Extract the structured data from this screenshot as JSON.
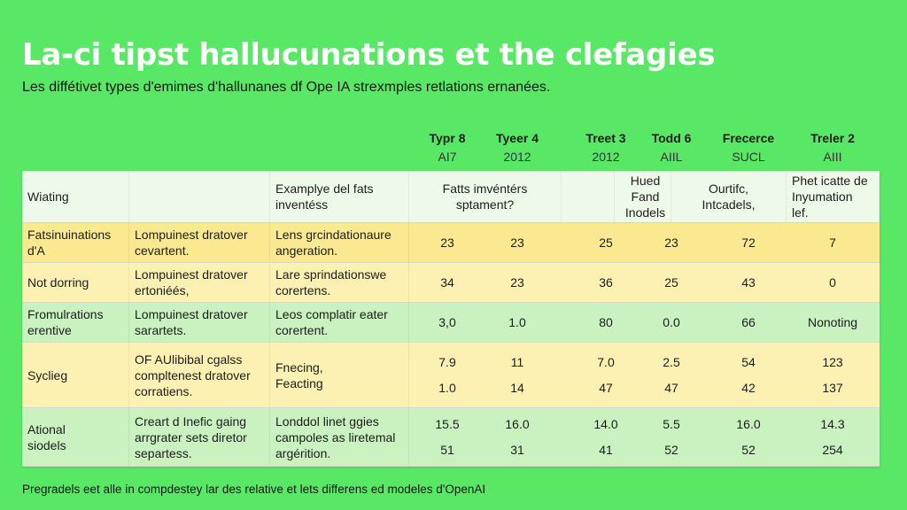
{
  "title": "La-ci tipst hallucunations et the clefagies",
  "subtitle": "Les diffétivet types d'emimes d'hallunanes df Ope IA strexmples retlations ernanées.",
  "footnote": "Pregradels eet alle in compdestey lar des relative et lets differens ed modeles d'OpenAI",
  "chart_data": {
    "type": "table",
    "column_headers": [
      {
        "name": "Typr 8",
        "sub": "AI7"
      },
      {
        "name": "Tyeer 4",
        "sub": "2012"
      },
      {
        "name": "Treet 3",
        "sub": "2012"
      },
      {
        "name": "Todd 6",
        "sub": "AIIL"
      },
      {
        "name": "Frecerce",
        "sub": "SUCL"
      },
      {
        "name": "Treler 2",
        "sub": "AIII"
      }
    ],
    "header_row": {
      "label": "Wiating",
      "desc": "",
      "example": [
        "Examplye del fats",
        "inventéss"
      ],
      "cells": [
        [
          "Fatts imvéntérs",
          "sptament?"
        ],
        [],
        [
          "Hued",
          "Fand",
          "Inodels"
        ],
        [
          "Ourtifc,",
          "Intcadels,"
        ],
        [
          "Phet icatte de",
          "Inyumation",
          "lef."
        ]
      ]
    },
    "rows": [
      {
        "label": [
          "Fatsinuinations",
          "d'A"
        ],
        "desc": [
          "Lompuinest dratover",
          "cevartent."
        ],
        "example": [
          "Lens grcindationaure",
          "angeration."
        ],
        "values": [
          [
            "23"
          ],
          [
            "23"
          ],
          [
            "25"
          ],
          [
            "23"
          ],
          [
            "72"
          ],
          [
            "7"
          ]
        ]
      },
      {
        "label": [
          "Not dorring"
        ],
        "desc": [
          "Lompuinest dratover",
          "ertoniéés,"
        ],
        "example": [
          "Lare sprindationswe",
          "corertens."
        ],
        "values": [
          [
            "34"
          ],
          [
            "23"
          ],
          [
            "36"
          ],
          [
            "25"
          ],
          [
            "43"
          ],
          [
            "0"
          ]
        ]
      },
      {
        "label": [
          "Fromulrations",
          "erentive"
        ],
        "desc": [
          "Lompuinest dratover",
          "sarartets."
        ],
        "example": [
          "Leos complatir eater",
          "corertent."
        ],
        "values": [
          [
            "3,0"
          ],
          [
            "1.0"
          ],
          [
            "80"
          ],
          [
            "0.0"
          ],
          [
            "66"
          ],
          [
            "Nonoting"
          ]
        ]
      },
      {
        "label": [
          "Syclieg"
        ],
        "desc": [
          "OF AUlibibal cgalss",
          "compltenest dratover",
          "corratiens."
        ],
        "example": [
          "Fnecing,",
          "Feacting"
        ],
        "values": [
          [
            "7.9",
            "1.0"
          ],
          [
            "11",
            "14"
          ],
          [
            "7.0",
            "47"
          ],
          [
            "2.5",
            "47"
          ],
          [
            "54",
            "42"
          ],
          [
            "123",
            "137"
          ]
        ]
      },
      {
        "label": [
          "Ational",
          "siodels"
        ],
        "desc": [
          "Creart d Inefic gaing",
          "arrgrater sets diretor",
          "separtess."
        ],
        "example": [
          "Londdol linet ggies",
          "campoles as liretemal",
          "argérition."
        ],
        "values": [
          [
            "15.5",
            "51"
          ],
          [
            "16.0",
            "31"
          ],
          [
            "14.0",
            "41"
          ],
          [
            "5.5",
            "52"
          ],
          [
            "16.0",
            "52"
          ],
          [
            "14.3",
            "254"
          ]
        ]
      }
    ]
  }
}
